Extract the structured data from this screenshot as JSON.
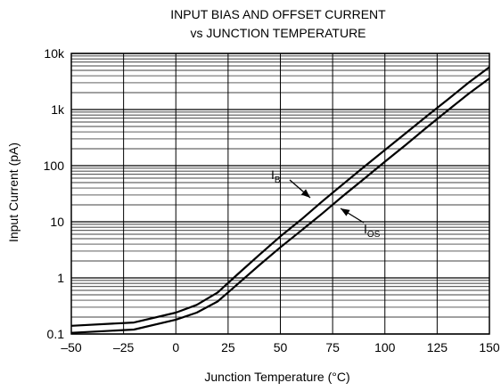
{
  "chart_data": {
    "type": "line",
    "title_lines": [
      "INPUT BIAS AND OFFSET CURRENT",
      "vs JUNCTION TEMPERATURE"
    ],
    "xlabel": "Junction Temperature (°C)",
    "ylabel": "Input Current (pA)",
    "xlim": [
      -50,
      150
    ],
    "ylim": [
      0.1,
      10000
    ],
    "y_scale": "log",
    "x_ticks": [
      -50,
      -25,
      0,
      25,
      50,
      75,
      100,
      125,
      150
    ],
    "x_tick_labels": [
      "–50",
      "–25",
      "0",
      "25",
      "50",
      "75",
      "100",
      "125",
      "150"
    ],
    "y_ticks": [
      0.1,
      1,
      10,
      100,
      1000,
      10000
    ],
    "y_tick_labels": [
      "0.1",
      "1",
      "10",
      "100",
      "1k",
      "10k"
    ],
    "grid": true,
    "series": [
      {
        "key": "ib",
        "label_main": "I",
        "label_sub": "B",
        "points": [
          [
            -50,
            0.14
          ],
          [
            -20,
            0.16
          ],
          [
            0,
            0.24
          ],
          [
            10,
            0.33
          ],
          [
            20,
            0.55
          ],
          [
            30,
            1.2
          ],
          [
            40,
            2.6
          ],
          [
            50,
            5.5
          ],
          [
            60,
            11
          ],
          [
            70,
            23
          ],
          [
            80,
            47
          ],
          [
            90,
            95
          ],
          [
            100,
            190
          ],
          [
            110,
            380
          ],
          [
            120,
            760
          ],
          [
            130,
            1500
          ],
          [
            140,
            3000
          ],
          [
            150,
            5700
          ]
        ]
      },
      {
        "key": "ios",
        "label_main": "I",
        "label_sub": "OS",
        "points": [
          [
            -50,
            0.105
          ],
          [
            -20,
            0.12
          ],
          [
            0,
            0.18
          ],
          [
            10,
            0.24
          ],
          [
            20,
            0.38
          ],
          [
            30,
            0.8
          ],
          [
            40,
            1.7
          ],
          [
            50,
            3.5
          ],
          [
            60,
            7
          ],
          [
            70,
            14
          ],
          [
            80,
            29
          ],
          [
            90,
            58
          ],
          [
            100,
            118
          ],
          [
            110,
            235
          ],
          [
            120,
            480
          ],
          [
            130,
            960
          ],
          [
            140,
            1900
          ],
          [
            150,
            3600
          ]
        ]
      }
    ]
  }
}
